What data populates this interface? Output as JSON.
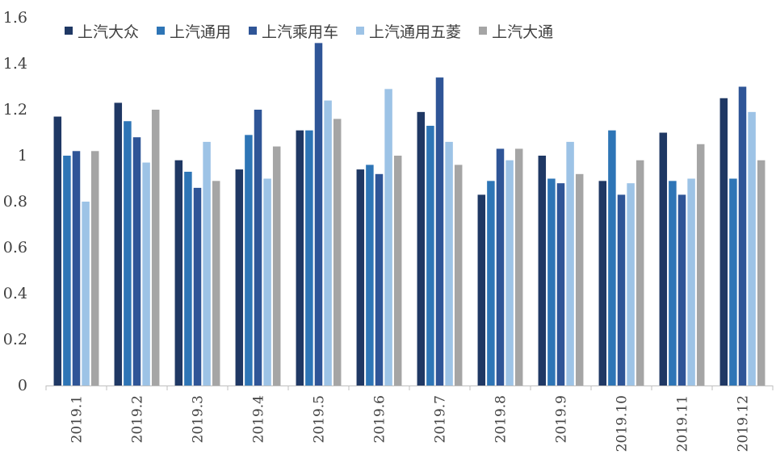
{
  "chart_data": {
    "type": "bar",
    "title": "",
    "xlabel": "",
    "ylabel": "",
    "ylim": [
      0,
      1.6
    ],
    "yticks": [
      "0",
      "0.2",
      "0.4",
      "0.6",
      "0.8",
      "1",
      "1.2",
      "1.4",
      "1.6"
    ],
    "grid": false,
    "legend_position": "top",
    "categories": [
      "2019.1",
      "2019.2",
      "2019.3",
      "2019.4",
      "2019.5",
      "2019.6",
      "2019.7",
      "2019.8",
      "2019.9",
      "2019.10",
      "2019.11",
      "2019.12"
    ],
    "series": [
      {
        "name": "上汽大众",
        "color": "#1f3864",
        "values": [
          1.17,
          1.23,
          0.98,
          0.94,
          1.11,
          0.94,
          1.19,
          0.83,
          1.0,
          0.89,
          1.1,
          1.25
        ]
      },
      {
        "name": "上汽通用",
        "color": "#2e75b6",
        "values": [
          1.0,
          1.15,
          0.93,
          1.09,
          1.11,
          0.96,
          1.13,
          0.89,
          0.9,
          1.11,
          0.89,
          0.9
        ]
      },
      {
        "name": "上汽乘用车",
        "color": "#2f5597",
        "values": [
          1.02,
          1.08,
          0.86,
          1.2,
          1.49,
          0.92,
          1.34,
          1.03,
          0.88,
          0.83,
          0.83,
          1.3
        ]
      },
      {
        "name": "上汽通用五菱",
        "color": "#9dc3e6",
        "values": [
          0.8,
          0.97,
          1.06,
          0.9,
          1.24,
          1.29,
          1.06,
          0.98,
          1.06,
          0.88,
          0.9,
          1.19
        ]
      },
      {
        "name": "上汽大通",
        "color": "#a5a5a5",
        "values": [
          1.02,
          1.2,
          0.89,
          1.04,
          1.16,
          1.0,
          0.96,
          1.03,
          0.92,
          0.98,
          1.05,
          0.98
        ]
      }
    ]
  }
}
